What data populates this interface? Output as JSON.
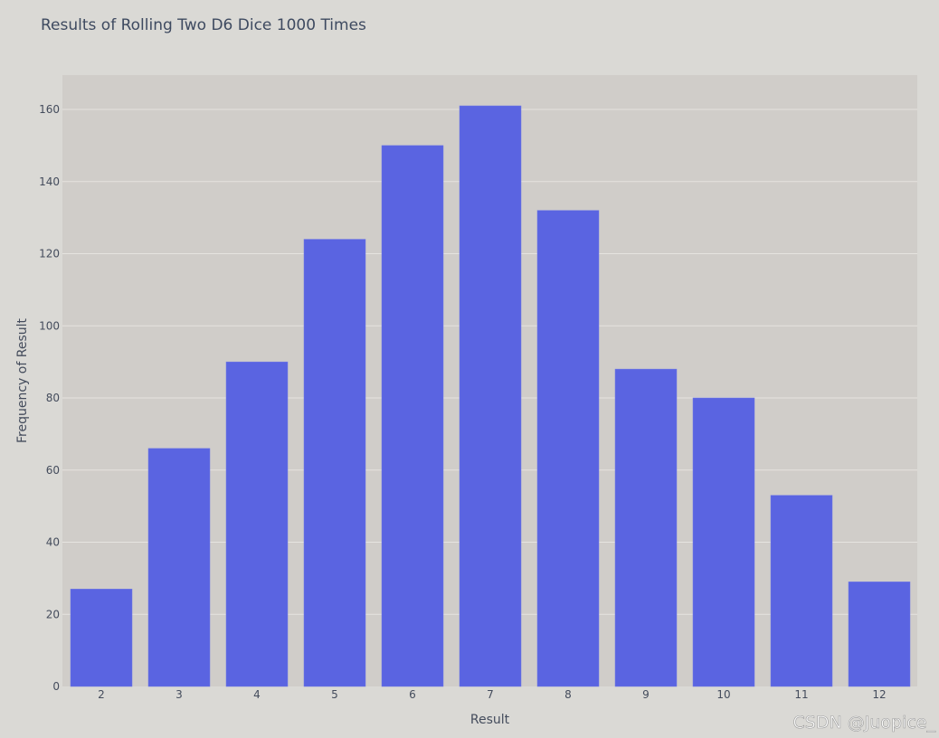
{
  "watermark": "CSDN @Juopice_",
  "colors": {
    "page_background": "#dad9d5",
    "plot_background": "#d0cdc9",
    "bar": "#5a64e1",
    "gridline": "#e6e4e0"
  },
  "chart_data": {
    "type": "bar",
    "title": "Results of Rolling Two D6 Dice 1000 Times",
    "xlabel": "Result",
    "ylabel": "Frequency of Result",
    "categories": [
      "2",
      "3",
      "4",
      "5",
      "6",
      "7",
      "8",
      "9",
      "10",
      "11",
      "12"
    ],
    "values": [
      27,
      66,
      90,
      124,
      150,
      161,
      132,
      88,
      80,
      53,
      29
    ],
    "ylim": [
      0,
      170
    ],
    "yticks": [
      0,
      20,
      40,
      60,
      80,
      100,
      120,
      140,
      160
    ],
    "grid": true,
    "legend": "none"
  }
}
